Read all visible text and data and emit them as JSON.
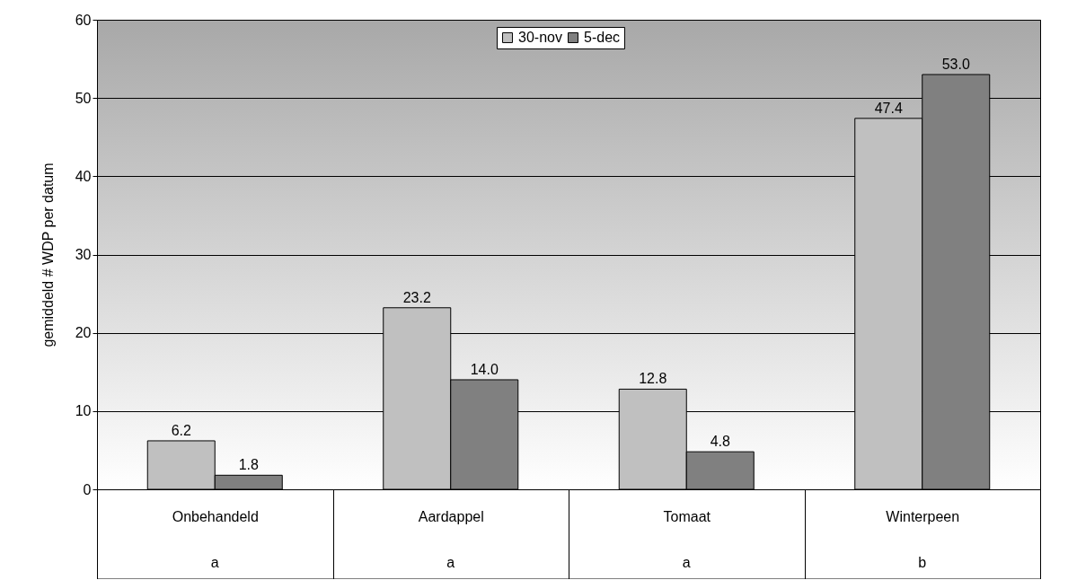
{
  "chart_data": {
    "type": "bar",
    "ylabel": "gemiddeld # WDP per datum",
    "categories": [
      "Onbehandeld",
      "Aardappel",
      "Tomaat",
      "Winterpeen"
    ],
    "series": [
      {
        "name": "30-nov",
        "color": "#c0c0c0",
        "values": [
          6.2,
          23.2,
          12.8,
          47.4
        ],
        "value_labels": [
          "6.2",
          "23.2",
          "12.8",
          "47.4"
        ]
      },
      {
        "name": "5-dec",
        "color": "#808080",
        "values": [
          1.8,
          14.0,
          4.8,
          53.0
        ],
        "value_labels": [
          "1.8",
          "14.0",
          "4.8",
          "53.0"
        ]
      }
    ],
    "ylim": [
      0,
      60
    ],
    "yticks": [
      0,
      10,
      20,
      30,
      40,
      50,
      60
    ],
    "grid": "y",
    "legend": "top",
    "annotations": [
      "a",
      "a",
      "a",
      "b"
    ]
  }
}
